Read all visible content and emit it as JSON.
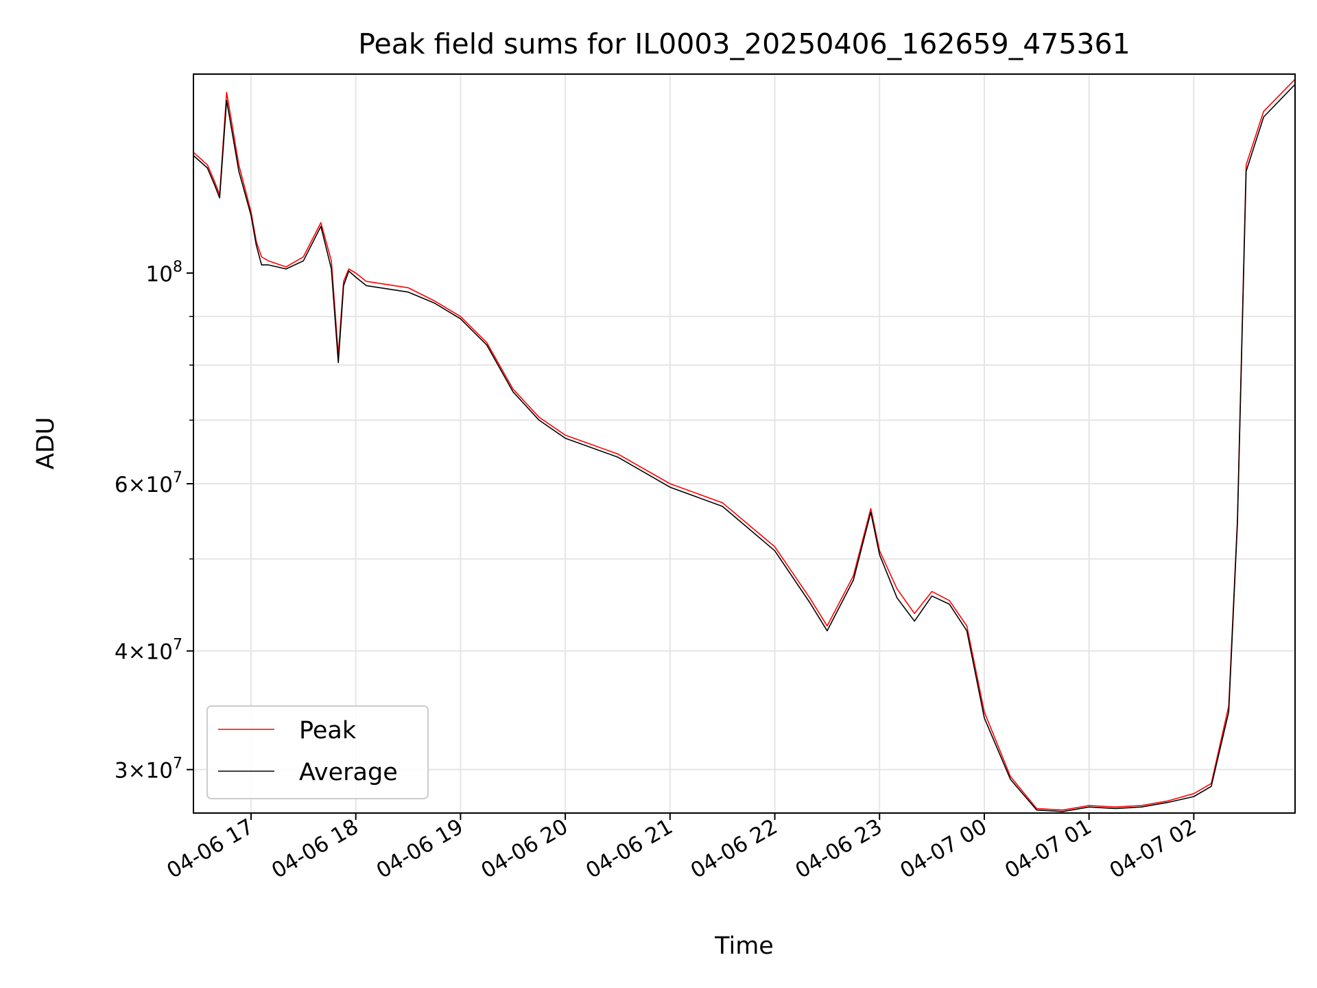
{
  "chart_data": {
    "type": "line",
    "title": "Peak field sums for IL0003_20250406_162659_475361",
    "xlabel": "Time",
    "ylabel": "ADU",
    "yscale": "log",
    "ylim": [
      27000000,
      162000000
    ],
    "xlim": [
      "04-06 16:27",
      "04-07 02:58"
    ],
    "grid": true,
    "legend_position": "lower-left",
    "x_ticks": [
      "04-06 17",
      "04-06 18",
      "04-06 19",
      "04-06 20",
      "04-06 21",
      "04-06 22",
      "04-06 23",
      "04-07 00",
      "04-07 01",
      "04-07 02"
    ],
    "y_ticks": [
      {
        "value": 100000000,
        "label": "10^8"
      },
      {
        "value": 60000000,
        "label": "6×10^7"
      },
      {
        "value": 40000000,
        "label": "4×10^7"
      },
      {
        "value": 30000000,
        "label": "3×10^7"
      }
    ],
    "x": [
      "04-06 16:27",
      "04-06 16:35",
      "04-06 16:39",
      "04-06 16:42",
      "04-06 16:46",
      "04-06 16:53",
      "04-06 17:00",
      "04-06 17:03",
      "04-06 17:06",
      "04-06 17:10",
      "04-06 17:20",
      "04-06 17:30",
      "04-06 17:40",
      "04-06 17:46",
      "04-06 17:50",
      "04-06 17:53",
      "04-06 17:56",
      "04-06 18:00",
      "04-06 18:06",
      "04-06 18:30",
      "04-06 18:45",
      "04-06 19:00",
      "04-06 19:15",
      "04-06 19:30",
      "04-06 19:45",
      "04-06 20:00",
      "04-06 20:30",
      "04-06 21:00",
      "04-06 21:30",
      "04-06 22:00",
      "04-06 22:20",
      "04-06 22:30",
      "04-06 22:45",
      "04-06 22:55",
      "04-06 23:00",
      "04-06 23:10",
      "04-06 23:20",
      "04-06 23:30",
      "04-06 23:40",
      "04-06 23:50",
      "04-07 00:00",
      "04-07 00:15",
      "04-07 00:30",
      "04-07 00:45",
      "04-07 01:00",
      "04-07 01:15",
      "04-07 01:30",
      "04-07 01:45",
      "04-07 02:00",
      "04-07 02:10",
      "04-07 02:20",
      "04-07 02:25",
      "04-07 02:30",
      "04-07 02:40",
      "04-07 02:58"
    ],
    "series": [
      {
        "name": "Peak",
        "color": "#ff0000",
        "values": [
          134000000,
          130000000,
          125000000,
          121000000,
          155000000,
          130000000,
          116000000,
          108000000,
          104000000,
          103000000,
          101500000,
          104000000,
          113000000,
          103000000,
          82000000,
          98000000,
          101000000,
          100000000,
          98000000,
          96500000,
          93500000,
          90000000,
          84500000,
          75500000,
          70500000,
          67500000,
          64500000,
          60000000,
          57300000,
          51500000,
          45500000,
          42500000,
          48000000,
          56500000,
          51000000,
          46500000,
          43800000,
          46200000,
          45200000,
          42500000,
          34500000,
          29500000,
          27300000,
          27200000,
          27500000,
          27400000,
          27500000,
          27800000,
          28300000,
          29000000,
          35000000,
          55000000,
          130000000,
          148000000,
          160000000
        ]
      },
      {
        "name": "Average",
        "color": "#000000",
        "values": [
          133000000,
          129000000,
          124000000,
          120000000,
          152000000,
          128000000,
          115000000,
          107000000,
          102000000,
          102000000,
          101000000,
          103000000,
          112000000,
          101000000,
          80500000,
          97000000,
          100500000,
          99000000,
          97000000,
          95500000,
          93000000,
          89500000,
          84000000,
          75000000,
          70000000,
          67000000,
          64000000,
          59500000,
          56800000,
          51000000,
          45000000,
          42000000,
          47500000,
          56000000,
          50500000,
          45500000,
          43000000,
          45700000,
          44800000,
          42000000,
          34000000,
          29300000,
          27200000,
          27100000,
          27400000,
          27300000,
          27400000,
          27700000,
          28100000,
          28800000,
          34500000,
          54500000,
          128000000,
          146000000,
          158000000
        ]
      }
    ]
  }
}
